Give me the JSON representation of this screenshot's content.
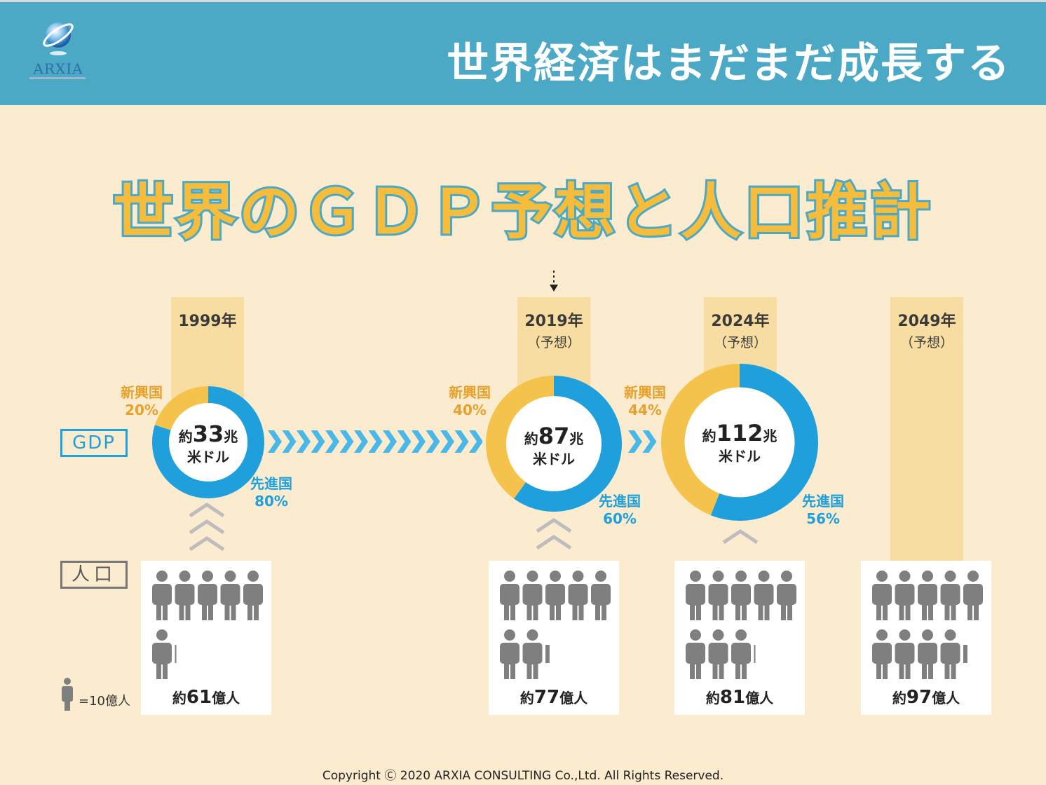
{
  "header": {
    "title": "世界経済はまだまだ成長する",
    "logo_text": "ARXIA"
  },
  "main_title": "世界のＧＤＰ予想と人口推計",
  "row_labels": {
    "gdp": "GDP",
    "population": "人口"
  },
  "colors": {
    "header": "#4ba9c6",
    "emerging": "#f5c34b",
    "developed": "#1fa0dd",
    "person": "#7f7f7f",
    "background": "#fbeccf"
  },
  "columns": [
    {
      "year": "1999年",
      "sub": "",
      "gdp_prefix": "約",
      "gdp_value": "33",
      "gdp_unit": "兆",
      "gdp_currency": "米ドル",
      "emerging_label": "新興国",
      "emerging_pct": "20%",
      "developed_label": "先進国",
      "developed_pct": "80%",
      "emerging_share": 0.2,
      "pop_prefix": "約",
      "pop_value": "61",
      "pop_unit": "億人",
      "pop_people": 6.1
    },
    {
      "year": "2019年",
      "sub": "（予想）",
      "gdp_prefix": "約",
      "gdp_value": "87",
      "gdp_unit": "兆",
      "gdp_currency": "米ドル",
      "emerging_label": "新興国",
      "emerging_pct": "40%",
      "developed_label": "先進国",
      "developed_pct": "60%",
      "emerging_share": 0.4,
      "pop_prefix": "約",
      "pop_value": "77",
      "pop_unit": "億人",
      "pop_people": 7.7
    },
    {
      "year": "2024年",
      "sub": "（予想）",
      "gdp_prefix": "約",
      "gdp_value": "112",
      "gdp_unit": "兆",
      "gdp_currency": "米ドル",
      "emerging_label": "新興国",
      "emerging_pct": "44%",
      "developed_label": "先進国",
      "developed_pct": "56%",
      "emerging_share": 0.44,
      "pop_prefix": "約",
      "pop_value": "81",
      "pop_unit": "億人",
      "pop_people": 8.1
    },
    {
      "year": "2049年",
      "sub": "（予想）",
      "pop_prefix": "約",
      "pop_value": "97",
      "pop_unit": "億人",
      "pop_people": 9.7
    }
  ],
  "legend": {
    "text": "=10億人"
  },
  "copyright": "Copyright Ⓒ 2020 ARXIA CONSULTING Co.,Ltd. All Rights Reserved."
}
